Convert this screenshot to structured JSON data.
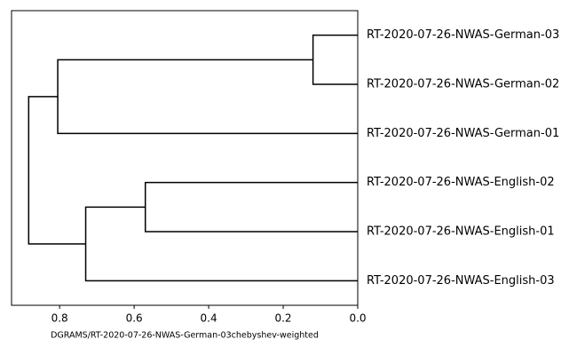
{
  "chart_data": {
    "type": "dendrogram",
    "xlabel": "DGRAMS/RT-2020-07-26-NWAS-German-03chebyshev-weighted",
    "xlim": [
      0.929,
      0
    ],
    "xticks": [
      0.8,
      0.6,
      0.4,
      0.2,
      {
        "value": 0,
        "label": "0.0"
      }
    ],
    "color": "#000000",
    "tree": {
      "height": 0.883,
      "children": [
        {
          "height": 0.805,
          "children": [
            {
              "height": 0.12,
              "children": [
                "RT-2020-07-26-NWAS-German-03",
                "RT-2020-07-26-NWAS-German-02"
              ]
            },
            "RT-2020-07-26-NWAS-German-01"
          ]
        },
        {
          "height": 0.73,
          "children": [
            {
              "height": 0.57,
              "children": [
                "RT-2020-07-26-NWAS-English-02",
                "RT-2020-07-26-NWAS-English-01"
              ]
            },
            "RT-2020-07-26-NWAS-English-03"
          ]
        }
      ]
    }
  }
}
